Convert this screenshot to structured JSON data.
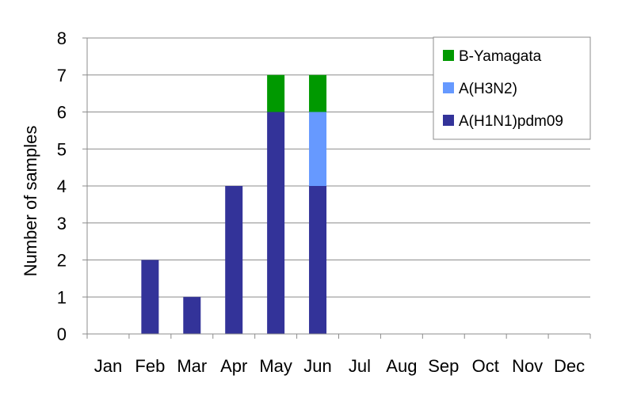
{
  "chart_data": {
    "type": "bar",
    "stacked": true,
    "categories": [
      "Jan",
      "Feb",
      "Mar",
      "Apr",
      "May",
      "Jun",
      "Jul",
      "Aug",
      "Sep",
      "Oct",
      "Nov",
      "Dec"
    ],
    "series": [
      {
        "name": "A(H1N1)pdm09",
        "color": "#333399",
        "values": [
          0,
          2,
          1,
          4,
          6,
          4,
          0,
          0,
          0,
          0,
          0,
          0
        ]
      },
      {
        "name": "A(H3N2)",
        "color": "#6699ff",
        "values": [
          0,
          0,
          0,
          0,
          0,
          2,
          0,
          0,
          0,
          0,
          0,
          0
        ]
      },
      {
        "name": "B-Yamagata",
        "color": "#009900",
        "values": [
          0,
          0,
          0,
          0,
          1,
          1,
          0,
          0,
          0,
          0,
          0,
          0
        ]
      }
    ],
    "ylabel": "Number of samples",
    "xlabel": "",
    "ylim": [
      0,
      8
    ],
    "yticks": [
      0,
      1,
      2,
      3,
      4,
      5,
      6,
      7,
      8
    ],
    "grid": true,
    "legend": {
      "position": "top-right",
      "order": [
        "B-Yamagata",
        "A(H3N2)",
        "A(H1N1)pdm09"
      ]
    }
  }
}
